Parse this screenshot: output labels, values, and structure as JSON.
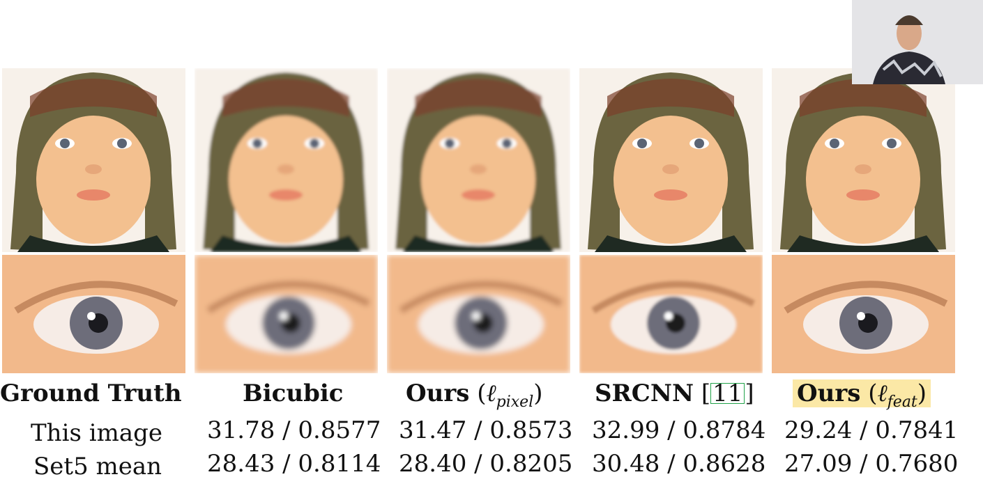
{
  "columns": [
    {
      "label": "Ground Truth",
      "psnr_ssim_this": "",
      "psnr_ssim_set5": ""
    },
    {
      "label": "Bicubic",
      "psnr_ssim_this": "31.78 / 0.8577",
      "psnr_ssim_set5": "28.43 / 0.8114"
    },
    {
      "label_main": "Ours",
      "label_loss": "ℓ",
      "label_sub": "pixel",
      "psnr_ssim_this": "31.47 / 0.8573",
      "psnr_ssim_set5": "28.40 / 0.8205"
    },
    {
      "label_main": "SRCNN",
      "label_cite": "11",
      "psnr_ssim_this": "32.99 / 0.8784",
      "psnr_ssim_set5": "30.48 / 0.8628"
    },
    {
      "label_main": "Ours",
      "label_loss": "ℓ",
      "label_sub": "feat",
      "psnr_ssim_this": "29.24 / 0.7841",
      "psnr_ssim_set5": "27.09 / 0.7680"
    }
  ],
  "rows": {
    "this_image": "This image",
    "set5_mean": "Set5 mean"
  },
  "colors": {
    "highlight": "#fbe8a6",
    "citation_box": "#22a34a",
    "skin": "#f4c08f",
    "hat": "#6b6440"
  }
}
